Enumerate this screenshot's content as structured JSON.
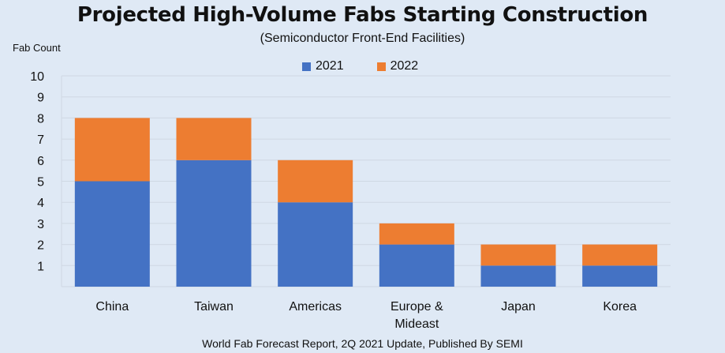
{
  "chart_data": {
    "type": "bar",
    "stacked": true,
    "title": "Projected High-Volume Fabs Starting Construction",
    "subtitle": "(Semiconductor Front-End Facilities)",
    "ylabel": "Fab Count",
    "xlabel": "",
    "ylim": [
      0,
      10
    ],
    "yticks": [
      1,
      2,
      3,
      4,
      5,
      6,
      7,
      8,
      9,
      10
    ],
    "grid": true,
    "legend_position": "top",
    "categories": [
      "China",
      "Taiwan",
      "Americas",
      "Europe & Mideast",
      "Japan",
      "Korea"
    ],
    "category_label_lines": [
      [
        "China"
      ],
      [
        "Taiwan"
      ],
      [
        "Americas"
      ],
      [
        "Europe &",
        "Mideast"
      ],
      [
        "Japan"
      ],
      [
        "Korea"
      ]
    ],
    "series": [
      {
        "name": "2021",
        "color": "#4472c4",
        "values": [
          5,
          6,
          4,
          2,
          1,
          1
        ]
      },
      {
        "name": "2022",
        "color": "#ed7d31",
        "values": [
          3,
          2,
          2,
          1,
          1,
          1
        ]
      }
    ],
    "source": "World Fab Forecast Report, 2Q 2021 Update, Published By SEMI"
  }
}
